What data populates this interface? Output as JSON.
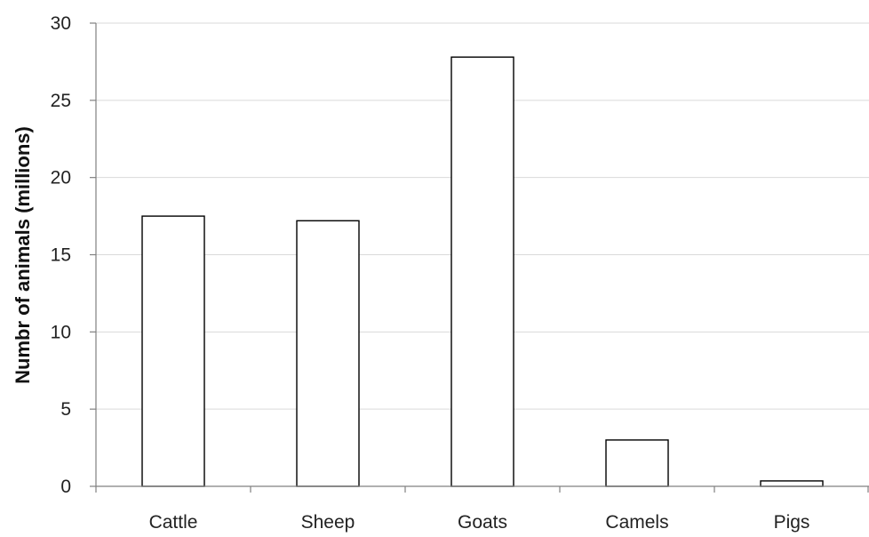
{
  "chart_data": {
    "type": "bar",
    "title": "",
    "xlabel": "",
    "ylabel": "Numbr of animals (millions)",
    "categories": [
      "Cattle",
      "Sheep",
      "Goats",
      "Camels",
      "Pigs"
    ],
    "values": [
      17.5,
      17.2,
      27.8,
      3.0,
      0.35
    ],
    "ylim": [
      0,
      30
    ],
    "yticks": [
      0,
      5,
      10,
      15,
      20,
      25,
      30
    ],
    "grid": true,
    "legend": "none",
    "colors": {
      "bar_fill": "#ffffff",
      "bar_stroke": "#000000",
      "grid": "#d9d9d9",
      "axis": "#808080"
    }
  }
}
